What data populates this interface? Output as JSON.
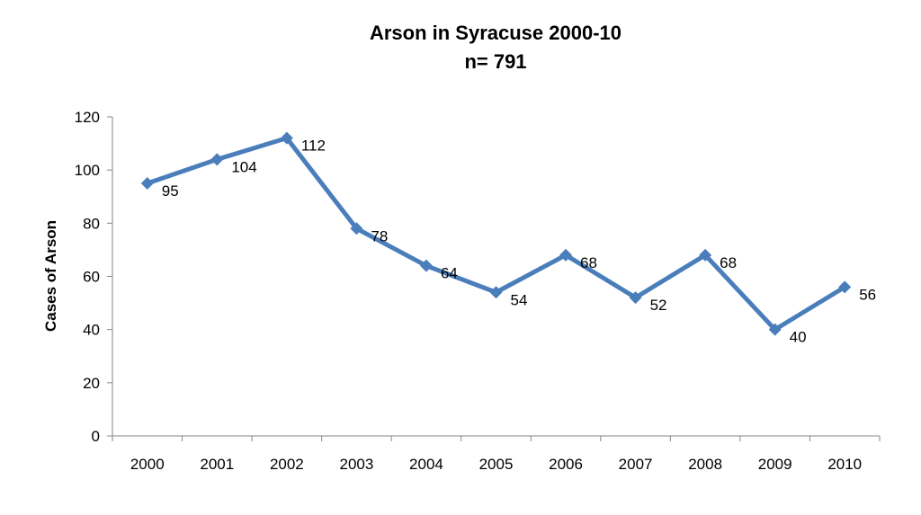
{
  "chart_data": {
    "type": "line",
    "title": "Arson in Syracuse 2000-10",
    "subtitle": "n= 791",
    "xlabel": "",
    "ylabel": "Cases of Arson",
    "categories": [
      "2000",
      "2001",
      "2002",
      "2003",
      "2004",
      "2005",
      "2006",
      "2007",
      "2008",
      "2009",
      "2010"
    ],
    "series": [
      {
        "values": [
          95,
          104,
          112,
          78,
          64,
          54,
          68,
          52,
          68,
          40,
          56
        ],
        "color": "#4a7ebb"
      }
    ],
    "ylim": [
      0,
      120
    ],
    "yticks": [
      0,
      20,
      40,
      60,
      80,
      100,
      120
    ],
    "grid": false,
    "legend": "none",
    "marker": "diamond",
    "data_labels": true
  }
}
